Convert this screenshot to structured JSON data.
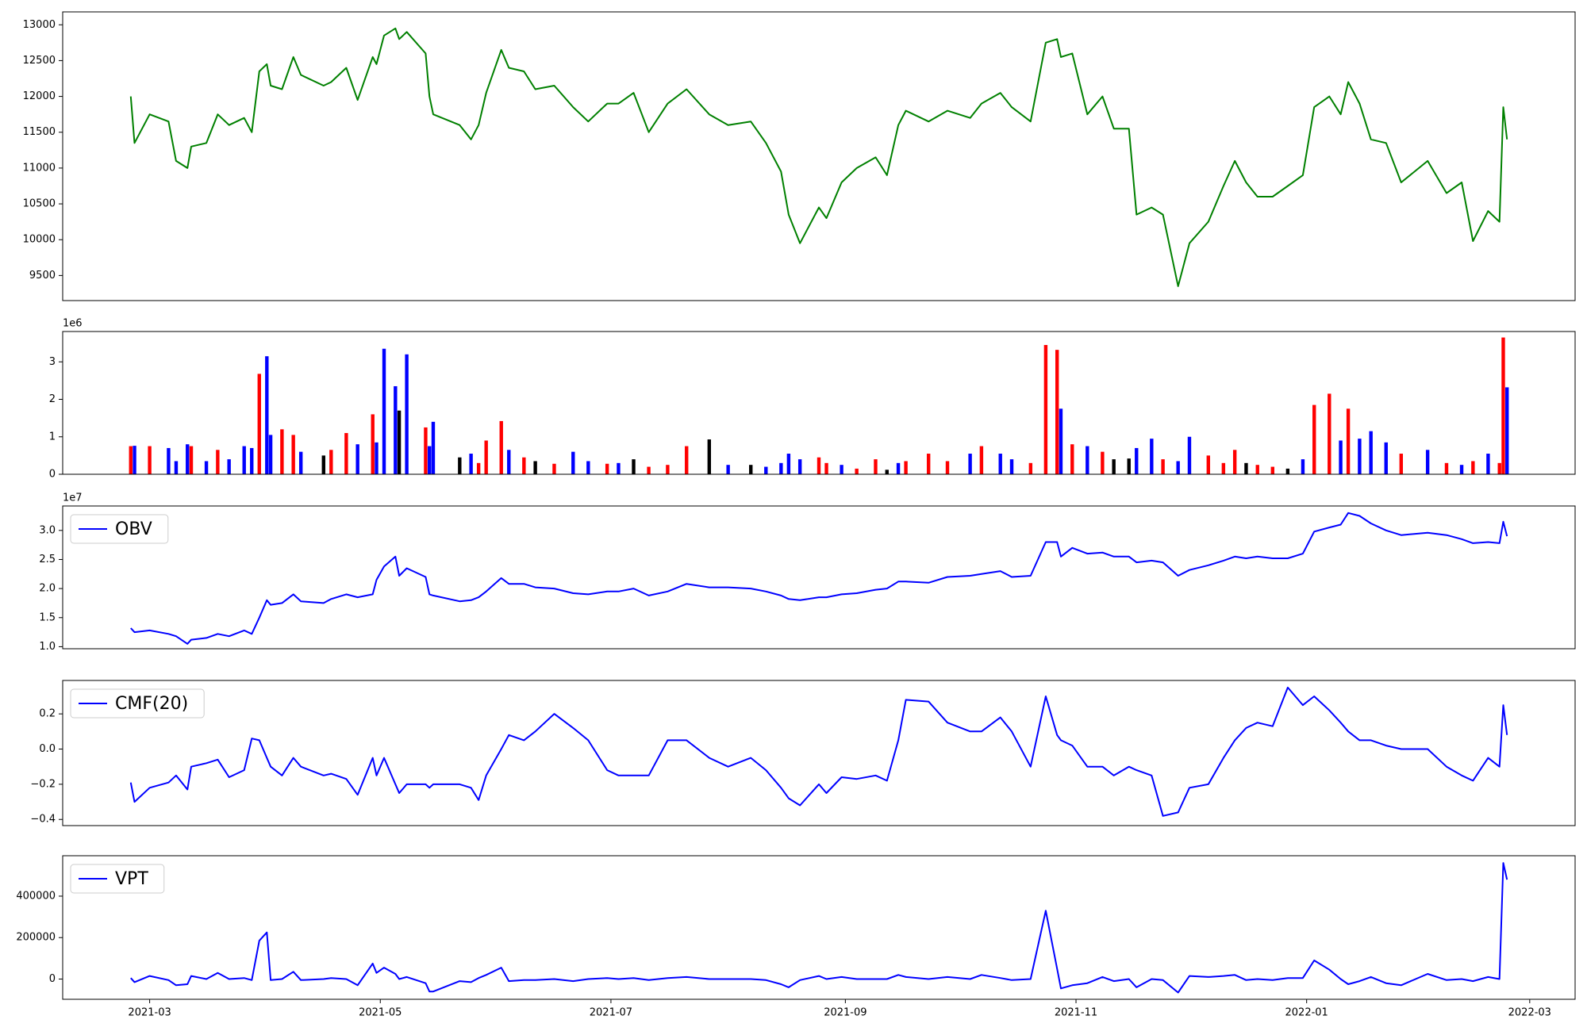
{
  "chart_data": {
    "xlim": [
      "2021-02-06",
      "2022-03-13"
    ],
    "xticks": [
      "2021-03",
      "2021-05",
      "2021-07",
      "2021-09",
      "2021-11",
      "2022-01",
      "2022-03"
    ],
    "x": [
      "2021-02-24",
      "2021-02-25",
      "2021-03-01",
      "2021-03-06",
      "2021-03-08",
      "2021-03-11",
      "2021-03-12",
      "2021-03-16",
      "2021-03-19",
      "2021-03-22",
      "2021-03-26",
      "2021-03-28",
      "2021-03-30",
      "2021-04-01",
      "2021-04-02",
      "2021-04-05",
      "2021-04-08",
      "2021-04-10",
      "2021-04-16",
      "2021-04-18",
      "2021-04-22",
      "2021-04-25",
      "2021-04-29",
      "2021-04-30",
      "2021-05-02",
      "2021-05-05",
      "2021-05-06",
      "2021-05-08",
      "2021-05-13",
      "2021-05-14",
      "2021-05-15",
      "2021-05-22",
      "2021-05-25",
      "2021-05-27",
      "2021-05-29",
      "2021-06-02",
      "2021-06-04",
      "2021-06-08",
      "2021-06-11",
      "2021-06-16",
      "2021-06-21",
      "2021-06-25",
      "2021-06-30",
      "2021-07-03",
      "2021-07-07",
      "2021-07-11",
      "2021-07-16",
      "2021-07-21",
      "2021-07-27",
      "2021-08-01",
      "2021-08-07",
      "2021-08-11",
      "2021-08-15",
      "2021-08-17",
      "2021-08-20",
      "2021-08-25",
      "2021-08-27",
      "2021-08-31",
      "2021-09-04",
      "2021-09-09",
      "2021-09-12",
      "2021-09-15",
      "2021-09-17",
      "2021-09-23",
      "2021-09-28",
      "2021-10-04",
      "2021-10-07",
      "2021-10-12",
      "2021-10-15",
      "2021-10-20",
      "2021-10-24",
      "2021-10-27",
      "2021-10-28",
      "2021-10-31",
      "2021-11-04",
      "2021-11-08",
      "2021-11-11",
      "2021-11-15",
      "2021-11-17",
      "2021-11-21",
      "2021-11-24",
      "2021-11-28",
      "2021-12-01",
      "2021-12-06",
      "2021-12-10",
      "2021-12-13",
      "2021-12-16",
      "2021-12-19",
      "2021-12-23",
      "2021-12-27",
      "2021-12-31",
      "2022-01-03",
      "2022-01-07",
      "2022-01-10",
      "2022-01-12",
      "2022-01-15",
      "2022-01-18",
      "2022-01-22",
      "2022-01-26",
      "2022-02-02",
      "2022-02-07",
      "2022-02-11",
      "2022-02-14",
      "2022-02-18",
      "2022-02-21",
      "2022-02-22",
      "2022-02-23"
    ],
    "panels": [
      {
        "type": "line",
        "ylim": [
          9150,
          13180
        ],
        "yticks": [
          9500,
          10000,
          10500,
          11000,
          11500,
          12000,
          12500,
          13000
        ],
        "series": [
          {
            "color": "green",
            "values": [
              12000,
              11350,
              11750,
              11650,
              11100,
              11000,
              11300,
              11350,
              11750,
              11600,
              11700,
              11500,
              12350,
              12450,
              12150,
              12100,
              12550,
              12300,
              12150,
              12200,
              12400,
              11950,
              12550,
              12450,
              12850,
              12950,
              12800,
              12900,
              12600,
              12000,
              11750,
              11600,
              11400,
              11600,
              12050,
              12650,
              12400,
              12350,
              12100,
              12150,
              11850,
              11650,
              11900,
              11900,
              12050,
              11500,
              11900,
              12100,
              11750,
              11600,
              11650,
              11350,
              10950,
              10350,
              9950,
              10450,
              10300,
              10800,
              11000,
              11150,
              10900,
              11600,
              11800,
              11650,
              11800,
              11700,
              11900,
              12050,
              11850,
              11650,
              12750,
              12800,
              12550,
              12600,
              11750,
              12000,
              11550,
              11550,
              10350,
              10450,
              10350,
              9350,
              9950,
              10250,
              10750,
              11100,
              10800,
              10600,
              10600,
              10750,
              10900,
              11850,
              12000,
              11750,
              12200,
              11900,
              11400,
              11350,
              10800,
              11100,
              10650,
              10800,
              9980,
              10400,
              10250,
              11850,
              11400
            ]
          }
        ]
      },
      {
        "type": "bar",
        "ylim": [
          0,
          3810000
        ],
        "offset_label": "1e6",
        "yticks": [
          0,
          {
            "value": 1000000,
            "label": "1"
          },
          {
            "value": 2000000,
            "label": "2"
          },
          {
            "value": 3000000,
            "label": "3"
          }
        ],
        "values": [
          750000,
          760000,
          750000,
          700000,
          350000,
          800000,
          750000,
          350000,
          650000,
          400000,
          750000,
          700000,
          2680000,
          3150000,
          1050000,
          1200000,
          1050000,
          600000,
          500000,
          650000,
          1100000,
          800000,
          1600000,
          850000,
          3350000,
          2350000,
          1700000,
          3200000,
          1250000,
          750000,
          1400000,
          450000,
          550000,
          300000,
          900000,
          1420000,
          650000,
          450000,
          350000,
          280000,
          600000,
          350000,
          280000,
          300000,
          400000,
          200000,
          250000,
          750000,
          930000,
          250000,
          250000,
          200000,
          300000,
          550000,
          400000,
          450000,
          300000,
          250000,
          150000,
          400000,
          120000,
          300000,
          350000,
          550000,
          350000,
          550000,
          750000,
          550000,
          400000,
          300000,
          3450000,
          3320000,
          1750000,
          800000,
          750000,
          600000,
          400000,
          420000,
          700000,
          950000,
          400000,
          350000,
          1000000,
          500000,
          300000,
          650000,
          300000,
          250000,
          200000,
          150000,
          400000,
          1850000,
          2150000,
          900000,
          1750000,
          950000,
          1150000,
          850000,
          550000,
          650000,
          300000,
          250000,
          350000,
          550000,
          300000,
          3650000,
          2320000
        ],
        "colors": [
          "red",
          "blue",
          "red",
          "blue",
          "blue",
          "blue",
          "red",
          "blue",
          "red",
          "blue",
          "blue",
          "blue",
          "red",
          "blue",
          "blue",
          "red",
          "red",
          "blue",
          "black",
          "red",
          "red",
          "blue",
          "red",
          "blue",
          "blue",
          "blue",
          "black",
          "blue",
          "red",
          "blue",
          "blue",
          "black",
          "blue",
          "red",
          "red",
          "red",
          "blue",
          "red",
          "black",
          "red",
          "blue",
          "blue",
          "red",
          "blue",
          "black",
          "red",
          "red",
          "red",
          "black",
          "blue",
          "black",
          "blue",
          "blue",
          "blue",
          "blue",
          "red",
          "red",
          "blue",
          "red",
          "red",
          "black",
          "blue",
          "red",
          "red",
          "red",
          "blue",
          "red",
          "blue",
          "blue",
          "red",
          "red",
          "red",
          "blue",
          "red",
          "blue",
          "red",
          "black",
          "black",
          "blue",
          "blue",
          "red",
          "blue",
          "blue",
          "red",
          "red",
          "red",
          "black",
          "red",
          "red",
          "black",
          "blue",
          "red",
          "red",
          "blue",
          "red",
          "blue",
          "blue",
          "blue",
          "red",
          "blue",
          "red",
          "blue",
          "red",
          "blue",
          "red",
          "red",
          "blue"
        ]
      },
      {
        "type": "line",
        "ylim": [
          9650000,
          34200000
        ],
        "offset_label": "1e7",
        "yticks": [
          {
            "value": 10000000,
            "label": "1.0"
          },
          {
            "value": 15000000,
            "label": "1.5"
          },
          {
            "value": 20000000,
            "label": "2.0"
          },
          {
            "value": 25000000,
            "label": "2.5"
          },
          {
            "value": 30000000,
            "label": "3.0"
          }
        ],
        "series": [
          {
            "name": "OBV",
            "color": "blue",
            "values": [
              13200000,
              12500000,
              12800000,
              12200000,
              11800000,
              10500000,
              11200000,
              11500000,
              12200000,
              11800000,
              12800000,
              12200000,
              15000000,
              18000000,
              17200000,
              17500000,
              19000000,
              17800000,
              17500000,
              18200000,
              19000000,
              18500000,
              19000000,
              21500000,
              23800000,
              25500000,
              22200000,
              23500000,
              22000000,
              19000000,
              18800000,
              17800000,
              18000000,
              18500000,
              19500000,
              21800000,
              20800000,
              20800000,
              20200000,
              20000000,
              19200000,
              19000000,
              19500000,
              19500000,
              20000000,
              18800000,
              19500000,
              20800000,
              20200000,
              20200000,
              20000000,
              19500000,
              18800000,
              18200000,
              18000000,
              18500000,
              18500000,
              19000000,
              19200000,
              19800000,
              20000000,
              21200000,
              21200000,
              21000000,
              22000000,
              22200000,
              22500000,
              23000000,
              22000000,
              22200000,
              28000000,
              28000000,
              25500000,
              27000000,
              26000000,
              26200000,
              25500000,
              25500000,
              24500000,
              24800000,
              24500000,
              22200000,
              23200000,
              24000000,
              24800000,
              25500000,
              25200000,
              25500000,
              25200000,
              25200000,
              26000000,
              29800000,
              30500000,
              31000000,
              33000000,
              32500000,
              31200000,
              30000000,
              29200000,
              29600000,
              29200000,
              28500000,
              27800000,
              28000000,
              27800000,
              31500000,
              29000000
            ]
          }
        ]
      },
      {
        "type": "line",
        "ylim": [
          -0.435,
          0.39
        ],
        "yticks": [
          {
            "value": -0.4,
            "label": "−0.4"
          },
          {
            "value": -0.2,
            "label": "−0.2"
          },
          {
            "value": 0,
            "label": "0.0"
          },
          0.2
        ],
        "series": [
          {
            "name": "CMF(20)",
            "color": "blue",
            "values": [
              -0.19,
              -0.3,
              -0.22,
              -0.19,
              -0.15,
              -0.23,
              -0.1,
              -0.08,
              -0.06,
              -0.16,
              -0.12,
              0.06,
              0.05,
              -0.05,
              -0.1,
              -0.15,
              -0.05,
              -0.1,
              -0.15,
              -0.14,
              -0.17,
              -0.26,
              -0.05,
              -0.15,
              -0.05,
              -0.2,
              -0.25,
              -0.2,
              -0.2,
              -0.22,
              -0.2,
              -0.2,
              -0.22,
              -0.29,
              -0.15,
              0.0,
              0.08,
              0.05,
              0.1,
              0.2,
              0.12,
              0.05,
              -0.12,
              -0.15,
              -0.15,
              -0.15,
              0.05,
              0.05,
              -0.05,
              -0.1,
              -0.05,
              -0.12,
              -0.22,
              -0.28,
              -0.32,
              -0.2,
              -0.25,
              -0.16,
              -0.17,
              -0.15,
              -0.18,
              0.05,
              0.28,
              0.27,
              0.15,
              0.1,
              0.1,
              0.18,
              0.1,
              -0.1,
              0.3,
              0.08,
              0.05,
              0.02,
              -0.1,
              -0.1,
              -0.15,
              -0.1,
              -0.12,
              -0.15,
              -0.38,
              -0.36,
              -0.22,
              -0.2,
              -0.05,
              0.05,
              0.12,
              0.15,
              0.13,
              0.35,
              0.25,
              0.3,
              0.22,
              0.15,
              0.1,
              0.05,
              0.05,
              0.02,
              0.0,
              0.0,
              -0.1,
              -0.15,
              -0.18,
              -0.05,
              -0.1,
              0.25,
              0.08
            ]
          }
        ]
      },
      {
        "type": "line",
        "ylim": [
          -97600,
          595000
        ],
        "yticks": [
          0,
          200000,
          400000
        ],
        "series": [
          {
            "name": "VPT",
            "color": "blue",
            "values": [
              5000,
              -15000,
              15000,
              -5000,
              -30000,
              -25000,
              15000,
              0,
              30000,
              0,
              5000,
              -5000,
              185000,
              225000,
              -5000,
              0,
              35000,
              -5000,
              0,
              5000,
              0,
              -30000,
              75000,
              30000,
              55000,
              25000,
              0,
              10000,
              -20000,
              -60000,
              -60000,
              -10000,
              -15000,
              5000,
              20000,
              55000,
              -10000,
              -5000,
              -5000,
              0,
              -10000,
              0,
              5000,
              0,
              5000,
              -5000,
              5000,
              10000,
              0,
              0,
              0,
              -5000,
              -25000,
              -40000,
              -5000,
              15000,
              0,
              10000,
              0,
              0,
              0,
              20000,
              10000,
              0,
              10000,
              0,
              20000,
              5000,
              -5000,
              0,
              330000,
              50000,
              -45000,
              -30000,
              -20000,
              10000,
              -10000,
              0,
              -40000,
              0,
              -5000,
              -65000,
              15000,
              10000,
              15000,
              20000,
              -5000,
              0,
              -5000,
              5000,
              5000,
              90000,
              45000,
              0,
              -25000,
              -10000,
              10000,
              -20000,
              -30000,
              25000,
              -5000,
              0,
              -10000,
              10000,
              0,
              560000,
              480000
            ]
          }
        ]
      }
    ]
  }
}
